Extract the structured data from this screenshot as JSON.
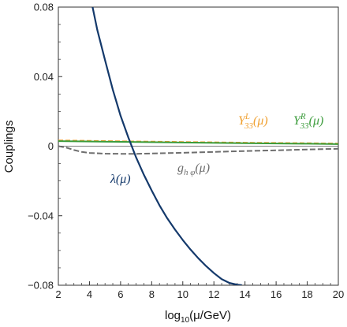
{
  "chart_data": {
    "type": "line",
    "xlabel": "log10(μ/GeV)",
    "ylabel": "Couplings",
    "xlim": [
      2,
      20
    ],
    "ylim": [
      -0.08,
      0.08
    ],
    "xticks": [
      "2",
      "4",
      "6",
      "8",
      "10",
      "12",
      "14",
      "16",
      "18",
      "20"
    ],
    "yticks": [
      "0.08",
      "0.04",
      "0",
      "−0.04",
      "−0.08"
    ],
    "grid": false,
    "zero_line": true,
    "series": [
      {
        "name": "λ(μ)",
        "color": "#14396b",
        "dash": "solid",
        "x": [
          4.2,
          4.5,
          5.0,
          5.5,
          6.0,
          6.5,
          7.0,
          7.5,
          8.0,
          8.5,
          9.0,
          9.5,
          10.0,
          10.5,
          11.0,
          11.5,
          12.0,
          12.5,
          13.0,
          13.5,
          13.8
        ],
        "y": [
          0.08,
          0.067,
          0.0495,
          0.0325,
          0.0175,
          0.005,
          -0.0065,
          -0.0165,
          -0.0255,
          -0.034,
          -0.0415,
          -0.048,
          -0.054,
          -0.0595,
          -0.0645,
          -0.069,
          -0.073,
          -0.0765,
          -0.0787,
          -0.0797,
          -0.08
        ]
      },
      {
        "name": "g_hφ(μ)",
        "color": "#6e6e6e",
        "dash": "dashed",
        "x": [
          2,
          2.5,
          3,
          3.5,
          4,
          5,
          6,
          7,
          8,
          10,
          12,
          14,
          16,
          18,
          20
        ],
        "y": [
          0.0,
          -0.0008,
          -0.0022,
          -0.0033,
          -0.0039,
          -0.0043,
          -0.0044,
          -0.0044,
          -0.0042,
          -0.0038,
          -0.0033,
          -0.0028,
          -0.0024,
          -0.0019,
          -0.0015
        ]
      },
      {
        "name": "Y^L_33(μ)",
        "color": "#f0a030",
        "dash": "dashed",
        "x": [
          2,
          6,
          10,
          14,
          18,
          20
        ],
        "y": [
          0.0033,
          0.0028,
          0.0024,
          0.002,
          0.0017,
          0.0015
        ]
      },
      {
        "name": "Y^R_33(μ)",
        "color": "#3a9b3a",
        "dash": "solid",
        "x": [
          2,
          6,
          10,
          14,
          18,
          20
        ],
        "y": [
          0.0029,
          0.0025,
          0.0021,
          0.0017,
          0.0014,
          0.0012
        ]
      }
    ]
  },
  "annotations": {
    "lambda": {
      "text": "λ(μ)",
      "color": "#14396b"
    },
    "g": {
      "main": "g",
      "sub": "h φ",
      "arg": "(μ)",
      "color": "#6e6e6e"
    },
    "yl": {
      "main": "Y",
      "sup": "L",
      "sub": "33",
      "arg": "(μ)",
      "color": "#f0a030"
    },
    "yr": {
      "main": "Y",
      "sup": "R",
      "sub": "33",
      "arg": "(μ)",
      "color": "#3a9b3a"
    }
  }
}
